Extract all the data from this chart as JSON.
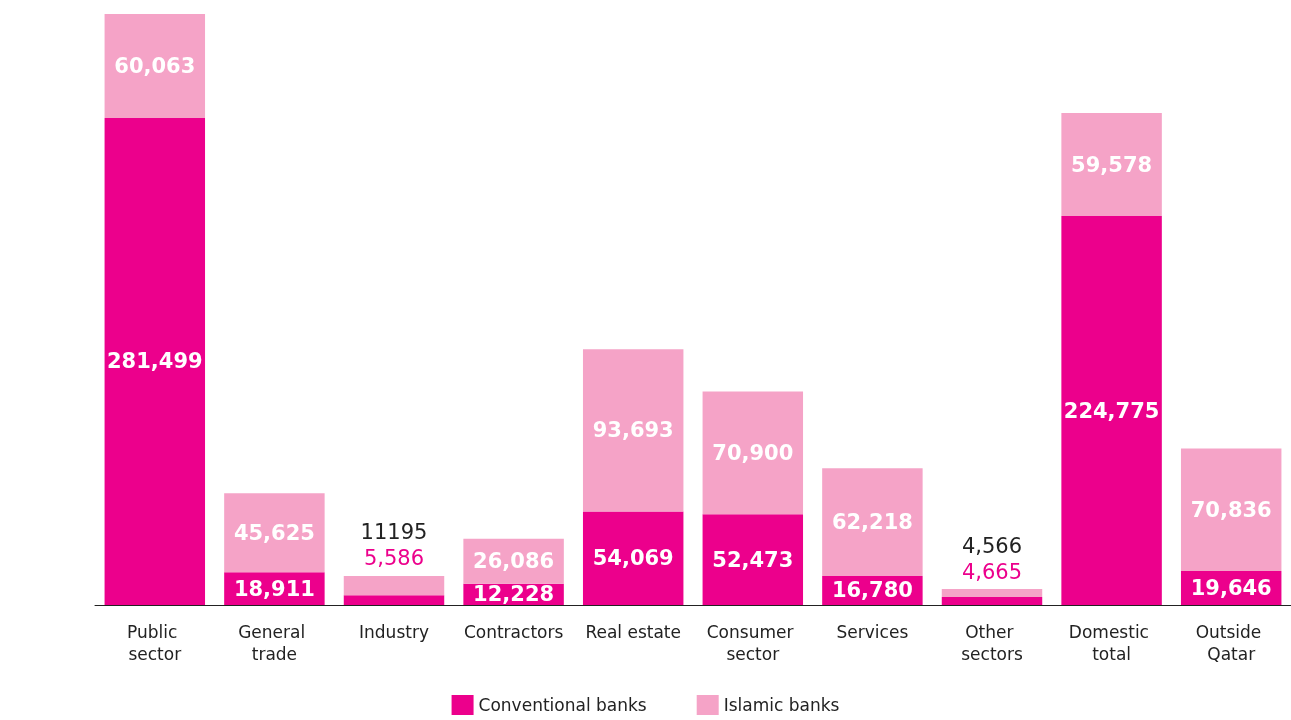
{
  "chart_data": {
    "type": "bar",
    "stacked": true,
    "data_labels": true,
    "legend": "bottom",
    "grid": false,
    "categories": [
      "Public sector",
      "General trade",
      "Industry",
      "Contractors",
      "Real estate",
      "Consumer sector",
      "Services",
      "Other sectors",
      "Domestic total",
      "Outside Qatar"
    ],
    "series": [
      {
        "name": "Conventional banks",
        "color": "#ec008c",
        "values": [
          281499,
          18911,
          5586,
          12228,
          54069,
          52473,
          16780,
          4665,
          224775,
          19646
        ],
        "value_labels": [
          "281,499",
          "18,911",
          "5,586",
          "12,228",
          "54,069",
          "52,473",
          "16,780",
          "4,665",
          "224,775",
          "19,646"
        ]
      },
      {
        "name": "Islamic banks",
        "color": "#f5a3c7",
        "values": [
          60063,
          45625,
          11195,
          26086,
          93693,
          70900,
          62218,
          4566,
          59578,
          70836
        ],
        "value_labels": [
          "60,063",
          "45,625",
          "11195",
          "26,086",
          "93,693",
          "70,900",
          "62,218",
          "4,566",
          "59,578",
          "70,836"
        ]
      }
    ]
  }
}
